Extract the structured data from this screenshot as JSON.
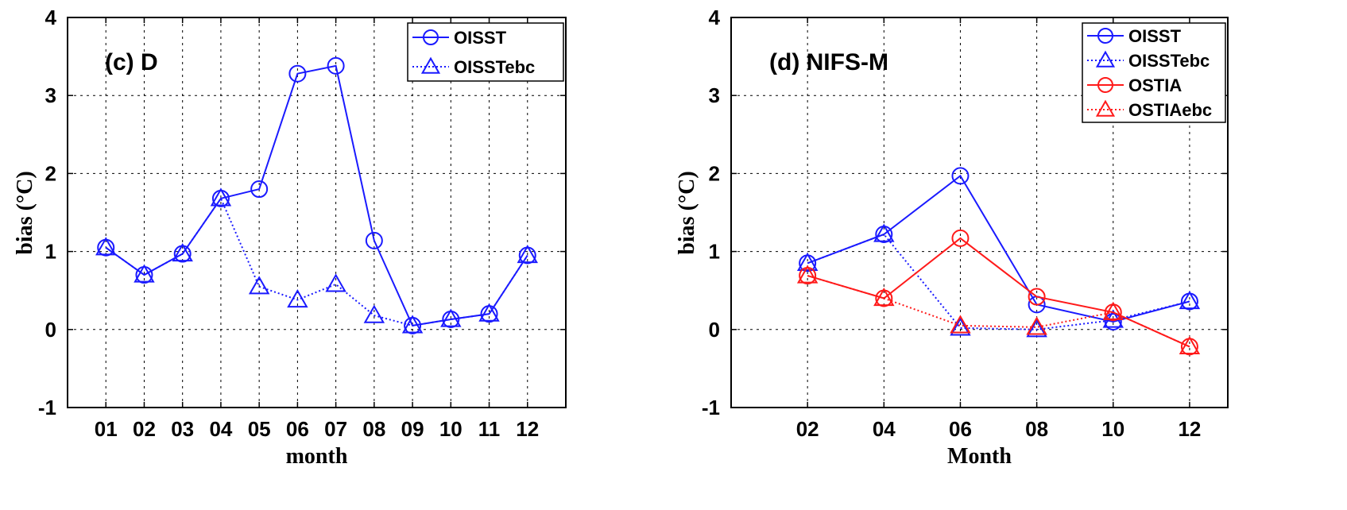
{
  "chart_data": [
    {
      "type": "line",
      "title": "(c) D",
      "xlabel": "month",
      "ylabel": "bias (°C)",
      "ylim": [
        -1,
        4
      ],
      "yticks": [
        "-1",
        "0",
        "1",
        "2",
        "3",
        "4"
      ],
      "categories": [
        "01",
        "02",
        "03",
        "04",
        "05",
        "06",
        "07",
        "08",
        "09",
        "10",
        "11",
        "12"
      ],
      "xlim": [
        0,
        13
      ],
      "x": [
        1,
        2,
        3,
        4,
        5,
        6,
        7,
        8,
        9,
        10,
        11,
        12
      ],
      "grid": true,
      "legend_position": "top-right",
      "series": [
        {
          "name": "OISST",
          "color": "#1a1aff",
          "marker": "circle",
          "line": "solid",
          "values": [
            1.05,
            0.7,
            0.97,
            1.68,
            1.8,
            3.28,
            3.38,
            1.14,
            0.05,
            0.13,
            0.2,
            0.95
          ]
        },
        {
          "name": "OISSTebc",
          "color": "#1a1aff",
          "marker": "triangle",
          "line": "dotted",
          "values": [
            1.05,
            0.7,
            0.97,
            1.68,
            0.55,
            0.38,
            0.58,
            0.18,
            0.05,
            0.13,
            0.2,
            0.95
          ]
        }
      ]
    },
    {
      "type": "line",
      "title": "(d) NIFS-M",
      "xlabel": "Month",
      "ylabel": "bias (°C)",
      "ylim": [
        -1,
        4
      ],
      "yticks": [
        "-1",
        "0",
        "1",
        "2",
        "3",
        "4"
      ],
      "categories": [
        "02",
        "04",
        "06",
        "08",
        "10",
        "12"
      ],
      "xlim": [
        0,
        13
      ],
      "x": [
        2,
        4,
        6,
        8,
        10,
        12
      ],
      "grid": true,
      "legend_position": "top-right",
      "series": [
        {
          "name": "OISST",
          "color": "#1a1aff",
          "marker": "circle",
          "line": "solid",
          "values": [
            0.85,
            1.22,
            1.97,
            0.32,
            0.1,
            0.36
          ]
        },
        {
          "name": "OISSTebc",
          "color": "#1a1aff",
          "marker": "triangle",
          "line": "dotted",
          "values": [
            0.85,
            1.22,
            0.02,
            0.0,
            0.12,
            0.36
          ]
        },
        {
          "name": "OSTIA",
          "color": "#ff1a1a",
          "marker": "circle",
          "line": "solid",
          "values": [
            0.69,
            0.4,
            1.17,
            0.42,
            0.22,
            -0.22
          ]
        },
        {
          "name": "OSTIAebc",
          "color": "#ff1a1a",
          "marker": "triangle",
          "line": "dotted",
          "values": [
            0.69,
            0.4,
            0.05,
            0.03,
            0.22,
            -0.22
          ]
        }
      ]
    }
  ]
}
